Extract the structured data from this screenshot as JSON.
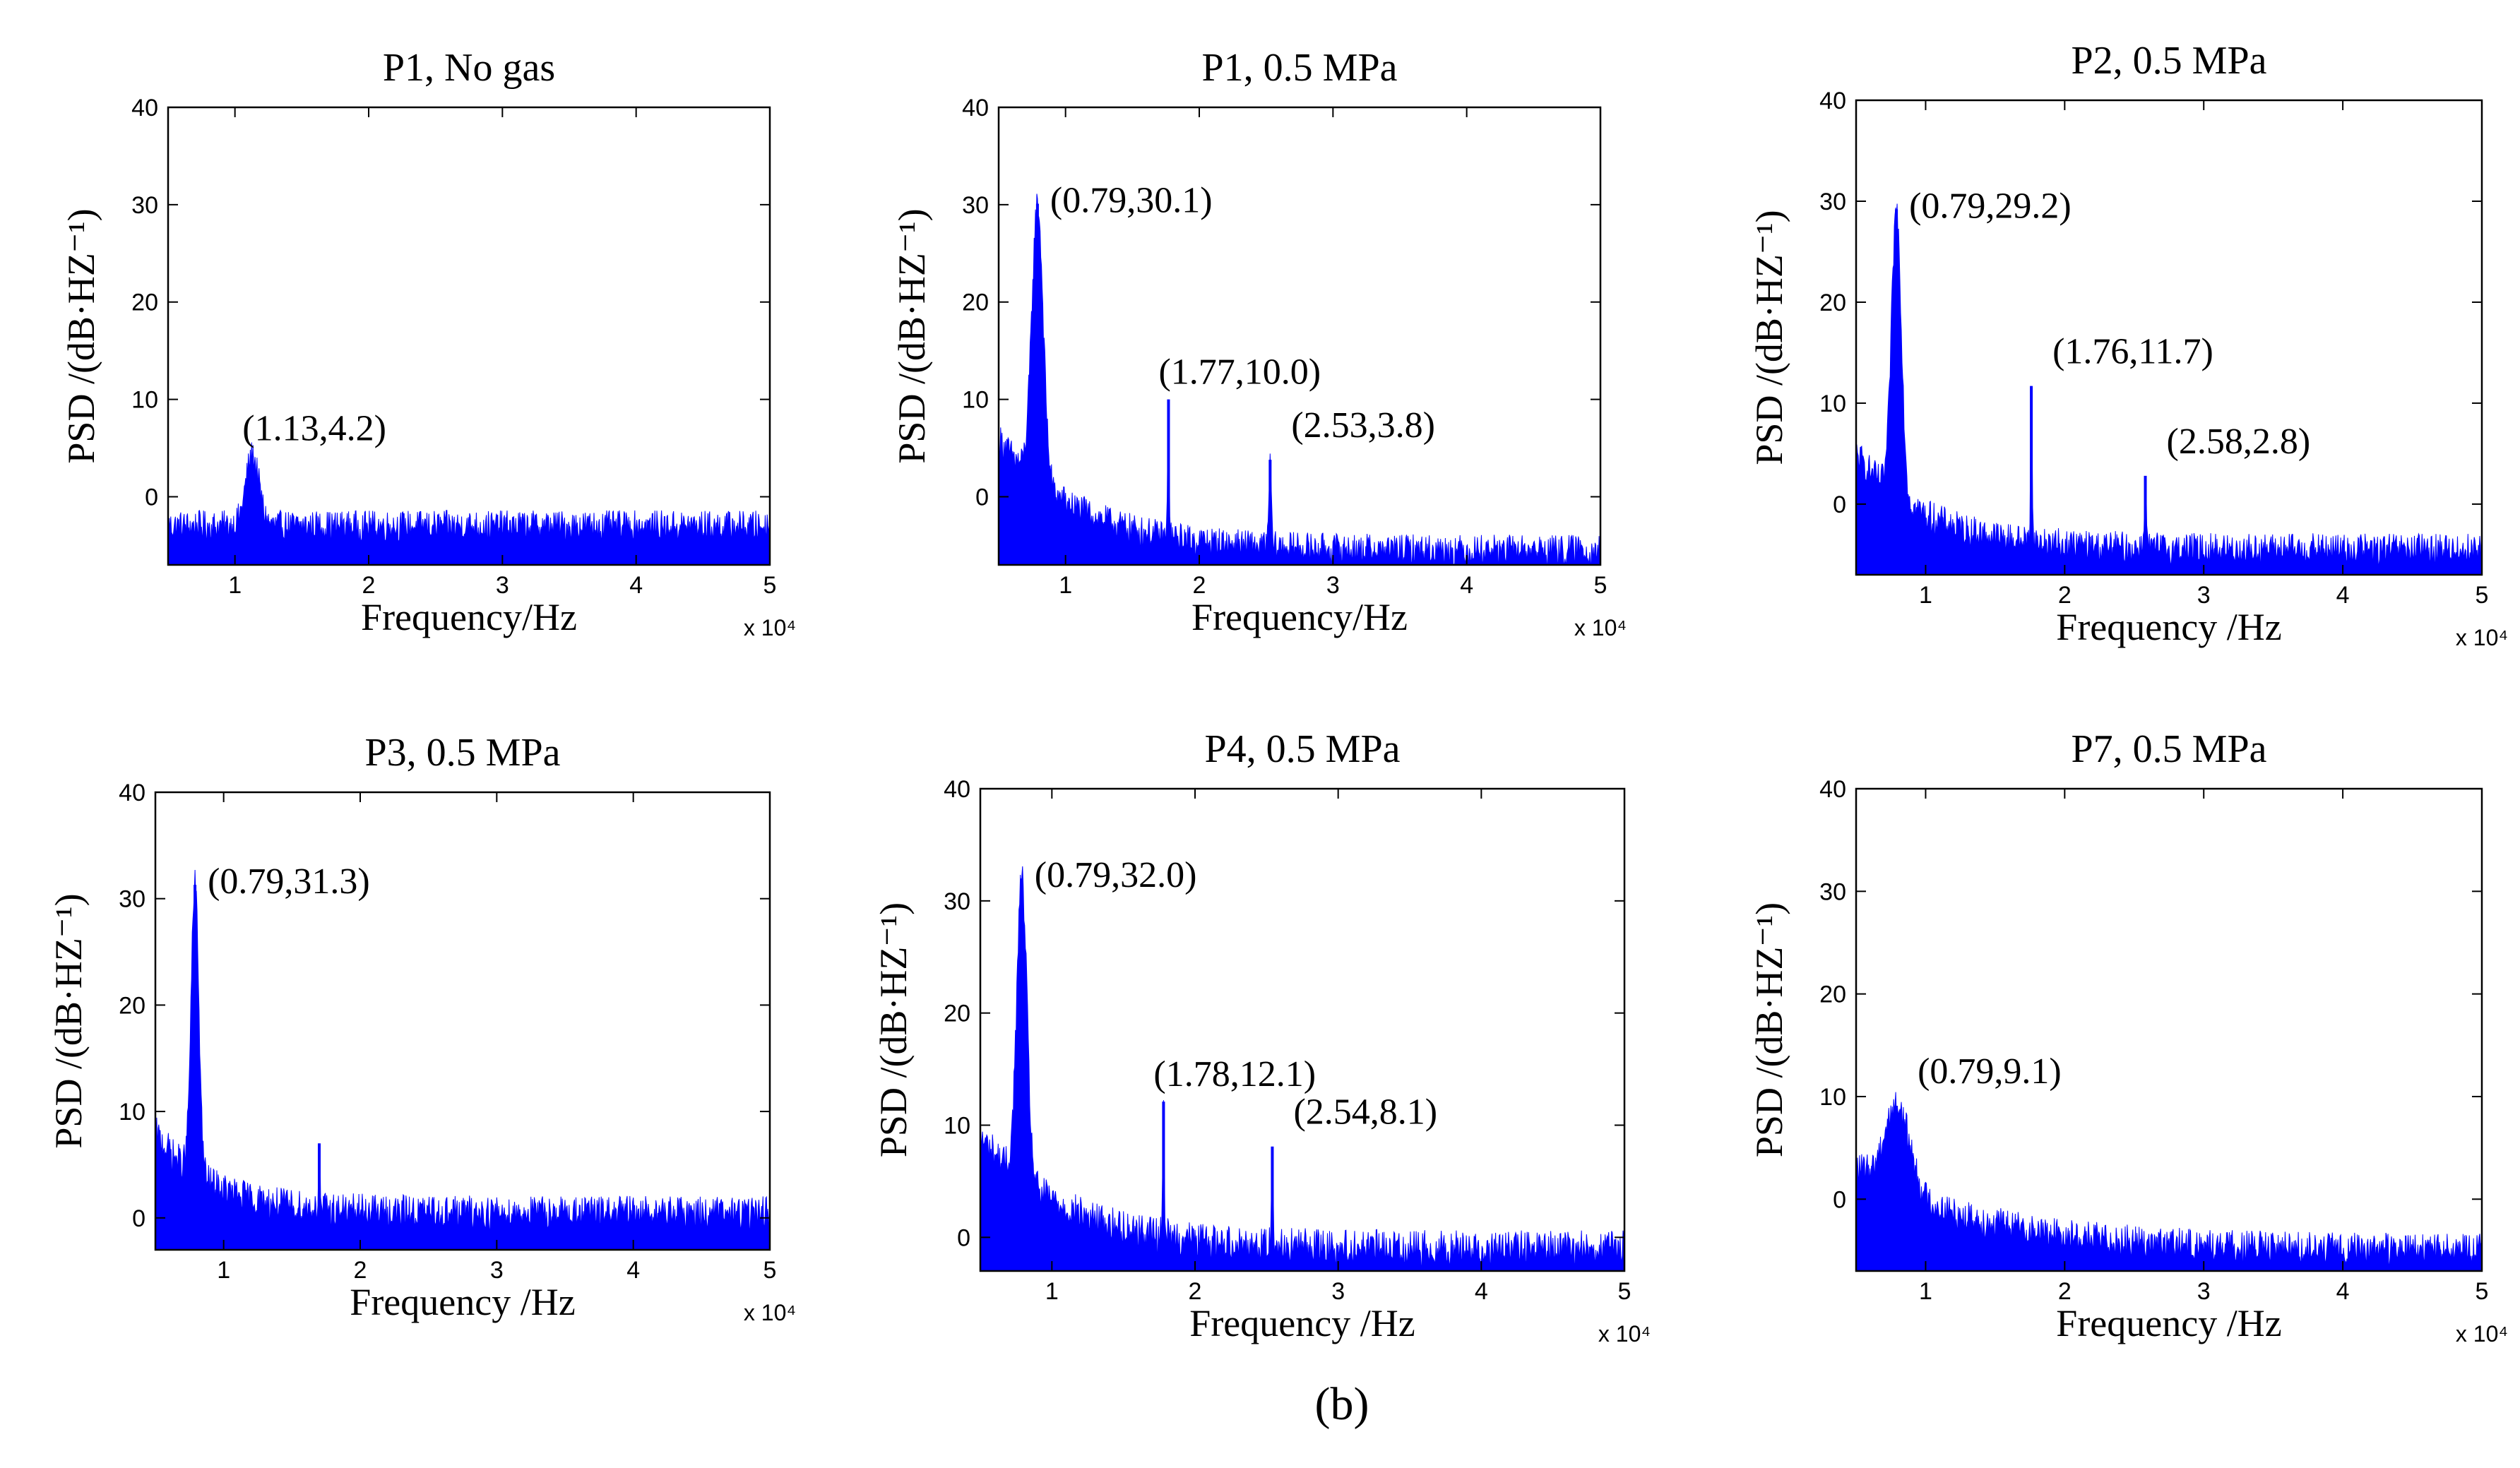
{
  "figure_caption": "(b)",
  "colors": {
    "series": "#0000ff",
    "axis": "#000000",
    "background": "#ffffff"
  },
  "chart_data": [
    {
      "type": "area",
      "title": "P1, No gas",
      "xlabel": "Frequency/Hz",
      "ylabel": "PSD /(dB·HZ⁻¹)",
      "x_multiplier": "x 10⁴",
      "xlim": [
        0.5,
        5
      ],
      "ylim": [
        -7,
        40
      ],
      "xticks": [
        1,
        2,
        3,
        4,
        5
      ],
      "yticks": [
        0,
        10,
        20,
        30,
        40
      ],
      "baseline_db": -3,
      "decay": {
        "start_db": -3,
        "end_db": -3,
        "tau": 1
      },
      "peaks": [
        {
          "x": 1.13,
          "y": 4.2,
          "width": 0.07
        }
      ],
      "annotations": [
        {
          "label": "(1.13,4.2)",
          "x": 1.13,
          "y": 4.2,
          "pos": "above"
        }
      ]
    },
    {
      "type": "area",
      "title": "P1, 0.5 MPa",
      "xlabel": "Frequency/Hz",
      "ylabel": "PSD /(dB·HZ⁻¹)",
      "x_multiplier": "x 10⁴",
      "xlim": [
        0.5,
        5
      ],
      "ylim": [
        -7,
        40
      ],
      "xticks": [
        1,
        2,
        3,
        4,
        5
      ],
      "yticks": [
        0,
        10,
        20,
        30,
        40
      ],
      "baseline_db": -5,
      "decay": {
        "start_db": 6,
        "end_db": -5.5,
        "tau": 0.6
      },
      "peaks": [
        {
          "x": 0.79,
          "y": 30.1,
          "width": 0.06
        },
        {
          "x": 1.77,
          "y": 10.0,
          "width": 0.008
        },
        {
          "x": 2.53,
          "y": 3.8,
          "width": 0.012
        }
      ],
      "annotations": [
        {
          "label": "(0.79,30.1)",
          "x": 0.79,
          "y": 30.1,
          "pos": "right"
        },
        {
          "label": "(1.77,10.0)",
          "x": 1.77,
          "y": 10.0,
          "pos": "above"
        },
        {
          "label": "(2.53,3.8)",
          "x": 2.53,
          "y": 3.8,
          "pos": "upright"
        }
      ]
    },
    {
      "type": "area",
      "title": "P2, 0.5 MPa",
      "xlabel": "Frequency /Hz",
      "ylabel": "PSD /(dB·HZ⁻¹)",
      "x_multiplier": "x 10⁴",
      "xlim": [
        0.5,
        5
      ],
      "ylim": [
        -7,
        40
      ],
      "xticks": [
        1,
        2,
        3,
        4,
        5
      ],
      "yticks": [
        0,
        10,
        20,
        30,
        40
      ],
      "baseline_db": -4,
      "decay": {
        "start_db": 5,
        "end_db": -4.5,
        "tau": 0.5
      },
      "peaks": [
        {
          "x": 0.79,
          "y": 29.2,
          "width": 0.05
        },
        {
          "x": 1.76,
          "y": 11.7,
          "width": 0.008
        },
        {
          "x": 2.58,
          "y": 2.8,
          "width": 0.01
        }
      ],
      "annotations": [
        {
          "label": "(0.79,29.2)",
          "x": 0.79,
          "y": 29.2,
          "pos": "right"
        },
        {
          "label": "(1.76,11.7)",
          "x": 1.76,
          "y": 11.7,
          "pos": "upright"
        },
        {
          "label": "(2.58,2.8)",
          "x": 2.58,
          "y": 2.8,
          "pos": "upright"
        }
      ]
    },
    {
      "type": "area",
      "title": "P3, 0.5 MPa",
      "xlabel": "Frequency /Hz",
      "ylabel": "PSD /(dB·HZ⁻¹)",
      "x_multiplier": "x 10⁴",
      "xlim": [
        0.5,
        5
      ],
      "ylim": [
        -3,
        40
      ],
      "xticks": [
        1,
        2,
        3,
        4,
        5
      ],
      "yticks": [
        0,
        10,
        20,
        30,
        40
      ],
      "baseline_db": 1,
      "decay": {
        "start_db": 8,
        "end_db": 0.5,
        "tau": 0.4
      },
      "peaks": [
        {
          "x": 0.79,
          "y": 31.3,
          "width": 0.04
        },
        {
          "x": 1.7,
          "y": 7,
          "width": 0.008
        }
      ],
      "annotations": [
        {
          "label": "(0.79,31.3)",
          "x": 0.79,
          "y": 31.3,
          "pos": "right"
        }
      ]
    },
    {
      "type": "area",
      "title": "P4, 0.5 MPa",
      "xlabel": "Frequency /Hz",
      "ylabel": "PSD /(dB·HZ⁻¹)",
      "x_multiplier": "x 10⁴",
      "xlim": [
        0.5,
        5
      ],
      "ylim": [
        -3,
        40
      ],
      "xticks": [
        1,
        2,
        3,
        4,
        5
      ],
      "yticks": [
        0,
        10,
        20,
        30,
        40
      ],
      "baseline_db": 0,
      "decay": {
        "start_db": 9,
        "end_db": -1,
        "tau": 0.6
      },
      "peaks": [
        {
          "x": 0.79,
          "y": 32.0,
          "width": 0.05
        },
        {
          "x": 1.78,
          "y": 12.1,
          "width": 0.008
        },
        {
          "x": 2.54,
          "y": 8.1,
          "width": 0.008
        }
      ],
      "annotations": [
        {
          "label": "(0.79,32.0)",
          "x": 0.79,
          "y": 32.0,
          "pos": "right"
        },
        {
          "label": "(1.78,12.1)",
          "x": 1.78,
          "y": 12.1,
          "pos": "above"
        },
        {
          "label": "(2.54,8.1)",
          "x": 2.54,
          "y": 8.1,
          "pos": "upright"
        }
      ]
    },
    {
      "type": "area",
      "title": "P7, 0.5 MPa",
      "xlabel": "Frequency /Hz",
      "ylabel": "PSD /(dB·HZ⁻¹)",
      "x_multiplier": "x 10⁴",
      "xlim": [
        0.5,
        5
      ],
      "ylim": [
        -7,
        40
      ],
      "xticks": [
        1,
        2,
        3,
        4,
        5
      ],
      "yticks": [
        0,
        10,
        20,
        30,
        40
      ],
      "baseline_db": -4,
      "decay": {
        "start_db": 3,
        "end_db": -5,
        "tau": 0.9
      },
      "peaks": [
        {
          "x": 0.79,
          "y": 9.1,
          "width": 0.13
        }
      ],
      "annotations": [
        {
          "label": "(0.79,9.1)",
          "x": 0.79,
          "y": 9.1,
          "pos": "upright"
        }
      ]
    }
  ]
}
